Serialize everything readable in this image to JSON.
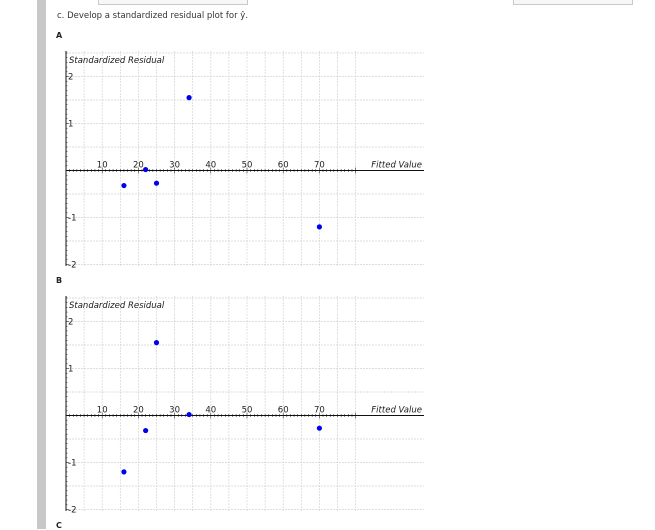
{
  "question": "c. Develop a standardized residual plot for ŷ.",
  "options": [
    {
      "label": "A",
      "chart_data": {
        "type": "scatter",
        "ylabel": "Standardized Residual",
        "xlabel": "Fitted Value",
        "xlim": [
          0,
          80
        ],
        "ylim": [
          -2,
          2
        ],
        "xticks": [
          10,
          20,
          30,
          40,
          50,
          60,
          70
        ],
        "yticks": [
          -2,
          -1,
          1,
          2
        ],
        "grid": true,
        "points": [
          {
            "x": 16,
            "y": -0.32
          },
          {
            "x": 22,
            "y": 0.02
          },
          {
            "x": 25,
            "y": -0.27
          },
          {
            "x": 34,
            "y": 1.55
          },
          {
            "x": 70,
            "y": -1.2
          }
        ]
      }
    },
    {
      "label": "B",
      "chart_data": {
        "type": "scatter",
        "ylabel": "Standardized Residual",
        "xlabel": "Fitted Value",
        "xlim": [
          0,
          80
        ],
        "ylim": [
          -2,
          2
        ],
        "xticks": [
          10,
          20,
          30,
          40,
          50,
          60,
          70
        ],
        "yticks": [
          -2,
          -1,
          1,
          2
        ],
        "grid": true,
        "points": [
          {
            "x": 16,
            "y": -1.2
          },
          {
            "x": 22,
            "y": -0.32
          },
          {
            "x": 25,
            "y": 1.55
          },
          {
            "x": 34,
            "y": 0.02
          },
          {
            "x": 70,
            "y": -0.27
          }
        ]
      }
    },
    {
      "label": "C"
    }
  ],
  "colors": {
    "point": "#0000ee",
    "grid": "#d3d3d3",
    "axis": "#111111"
  }
}
